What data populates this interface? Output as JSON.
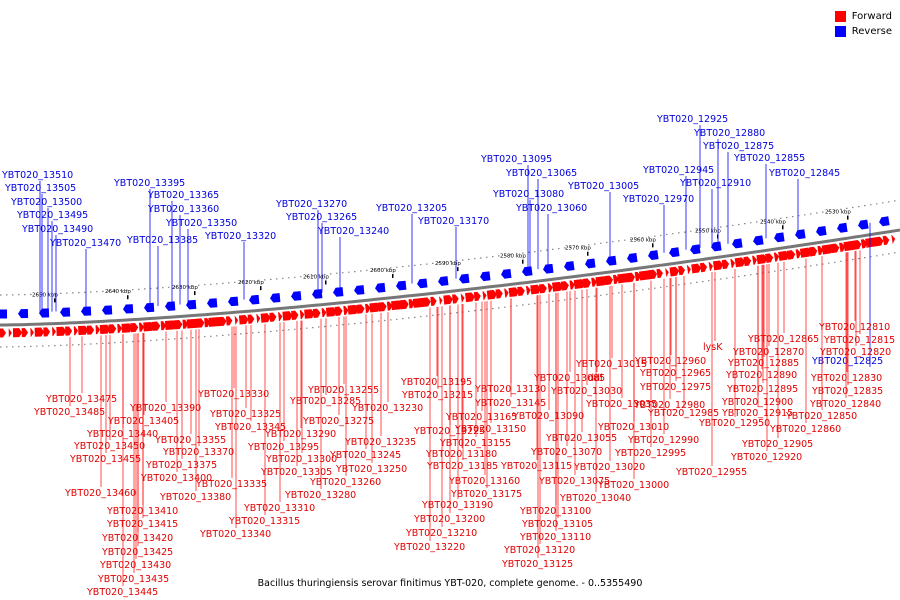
{
  "legend": {
    "forward_label": "Forward",
    "reverse_label": "Reverse",
    "forward_color": "#ff0000",
    "reverse_color": "#0000ff"
  },
  "caption": "Bacillus thuringiensis serovar finitimus YBT-020, complete genome. - 0..5355490",
  "scale_ticks": [
    "2650 kbp",
    "2640 kbp",
    "2630 kbp",
    "2620 kbp",
    "2610 kbp",
    "2600 kbp",
    "2590 kbp",
    "2580 kbp",
    "2570 kbp",
    "2560 kbp",
    "2550 kbp",
    "2540 kbp",
    "2530 kbp"
  ],
  "reverse_labels": [
    "YBT020_13510",
    "YBT020_13505",
    "YBT020_13500",
    "YBT020_13495",
    "YBT020_13490",
    "YBT020_13470",
    "YBT020_13395",
    "YBT020_13365",
    "YBT020_13360",
    "YBT020_13350",
    "YBT020_13385",
    "YBT020_13320",
    "YBT020_13270",
    "YBT020_13265",
    "YBT020_13240",
    "YBT020_13205",
    "YBT020_13170",
    "YBT020_13095",
    "YBT020_13065",
    "YBT020_13080",
    "YBT020_13060",
    "YBT020_13005",
    "YBT020_12945",
    "YBT020_12970",
    "YBT020_12925",
    "YBT020_12880",
    "YBT020_12875",
    "YBT020_12910",
    "YBT020_12855",
    "YBT020_12845",
    "YBT020_12825"
  ],
  "forward_labels": [
    "YBT020_13475",
    "YBT020_13485",
    "YBT020_13405",
    "YBT020_13440",
    "YBT020_13450",
    "YBT020_13455",
    "YBT020_13460",
    "YBT020_13410",
    "YBT020_13415",
    "YBT020_13420",
    "YBT020_13425",
    "YBT020_13430",
    "YBT020_13435",
    "YBT020_13445",
    "YBT020_13390",
    "YBT020_13355",
    "YBT020_13370",
    "YBT020_13375",
    "YBT020_13400",
    "YBT020_13380",
    "YBT020_13330",
    "YBT020_13325",
    "YBT020_13345",
    "YBT020_13335",
    "YBT020_13340",
    "YBT020_13300",
    "YBT020_13305",
    "YBT020_13310",
    "YBT020_13315",
    "YBT020_13295",
    "YBT020_13290",
    "YBT020_13285",
    "YBT020_13255",
    "YBT020_13275",
    "YBT020_13280",
    "YBT020_13230",
    "YBT020_13235",
    "YBT020_13245",
    "YBT020_13250",
    "YBT020_13260",
    "YBT020_13195",
    "YBT020_13215",
    "YBT020_13225",
    "YBT020_13165",
    "YBT020_13180",
    "YBT020_13185",
    "YBT020_13190",
    "YBT020_13175",
    "YBT020_13200",
    "YBT020_13210",
    "YBT020_13220",
    "YBT020_13130",
    "YBT020_13145",
    "YBT020_13150",
    "YBT020_13155",
    "YBT020_13160",
    "YBT020_13085",
    "YBT020_13090",
    "YBT020_13115",
    "YBT020_13100",
    "YBT020_13105",
    "YBT020_13110",
    "YBT020_13120",
    "YBT020_13125",
    "YBT020_13070",
    "YBT020_13075",
    "YBT020_13055",
    "YBT020_13020",
    "YBT020_13040",
    "YBT020_13015",
    "ddl",
    "YBT020_13030",
    "YBT020_13035",
    "YBT020_13010",
    "YBT020_13000",
    "YBT020_12995",
    "lysK",
    "YBT020_12960",
    "YBT020_12965",
    "YBT020_12975",
    "YBT020_12980",
    "YBT020_12985",
    "YBT020_12990",
    "YBT020_12950",
    "YBT020_12955",
    "YBT020_12865",
    "YBT020_12870",
    "YBT020_12885",
    "YBT020_12890",
    "YBT020_12895",
    "YBT020_12900",
    "YBT020_12915",
    "YBT020_12905",
    "YBT020_12920",
    "YBT020_12810",
    "YBT020_12815",
    "YBT020_12820",
    "YBT020_12830",
    "YBT020_12835",
    "YBT020_12840",
    "YBT020_12850",
    "YBT020_12860"
  ]
}
